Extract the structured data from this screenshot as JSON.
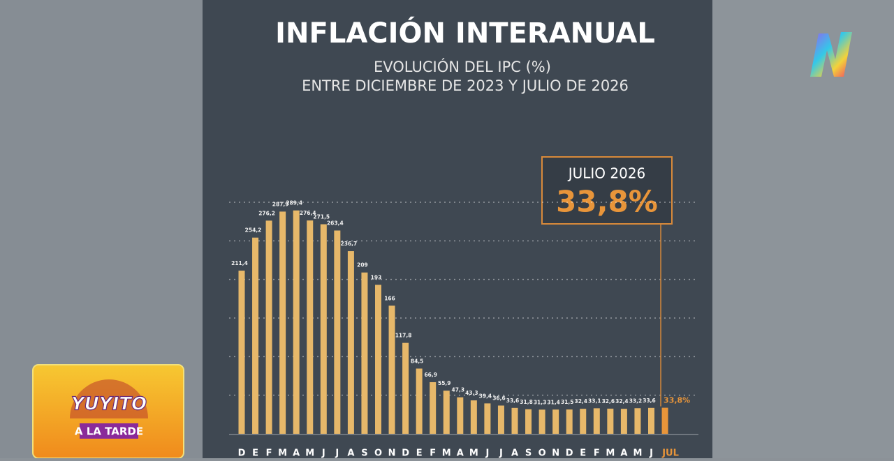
{
  "chart_data": {
    "type": "bar",
    "title": "INFLACIÓN INTERANUAL",
    "subtitle": [
      "EVOLUCIÓN DEL IPC (%)",
      "ENTRE DICIEMBRE DE 2023 Y JULIO DE 2026"
    ],
    "categories": [
      "D",
      "E",
      "F",
      "M",
      "A",
      "M",
      "J",
      "J",
      "A",
      "S",
      "O",
      "N",
      "D",
      "E",
      "F",
      "M",
      "A",
      "M",
      "J",
      "J",
      "A",
      "S",
      "O",
      "N",
      "D",
      "E",
      "F",
      "M",
      "A",
      "M",
      "J",
      "JUL"
    ],
    "values": [
      211.4,
      254.2,
      276.2,
      287.9,
      289.4,
      276.4,
      271.5,
      263.4,
      236.7,
      209,
      193,
      166,
      117.8,
      84.5,
      66.9,
      55.9,
      47.3,
      43.3,
      39.4,
      36.6,
      33.6,
      31.8,
      31.3,
      31.4,
      31.5,
      32.4,
      33.1,
      32.6,
      32.4,
      33.2,
      33.6,
      33.8
    ],
    "value_labels": [
      "211,4",
      "254,2",
      "276,2",
      "287,9",
      "289,4",
      "276,4",
      "271,5",
      "263,4",
      "236,7",
      "209",
      "193",
      "166",
      "117,8",
      "84,5",
      "66,9",
      "55,9",
      "47,3",
      "43,3",
      "39,4",
      "36,6",
      "33,6",
      "31,8",
      "31,3",
      "31,4",
      "31,5",
      "32,4",
      "33,1",
      "32,6",
      "32,4",
      "33,2",
      "33,6",
      "33,8%"
    ],
    "color": "#e7b86a",
    "last_color": "#e8953a",
    "ylim": [
      0,
      300
    ],
    "yticks": [
      50,
      100,
      150,
      200,
      250,
      300
    ],
    "grid": true,
    "annotation": {
      "label": "JULIO 2026",
      "value": 33.8,
      "value_label": "33,8%"
    }
  },
  "overlay": {
    "channel_logo": "N",
    "show_logo": [
      "YUYITO",
      "A LA TARDE"
    ]
  }
}
